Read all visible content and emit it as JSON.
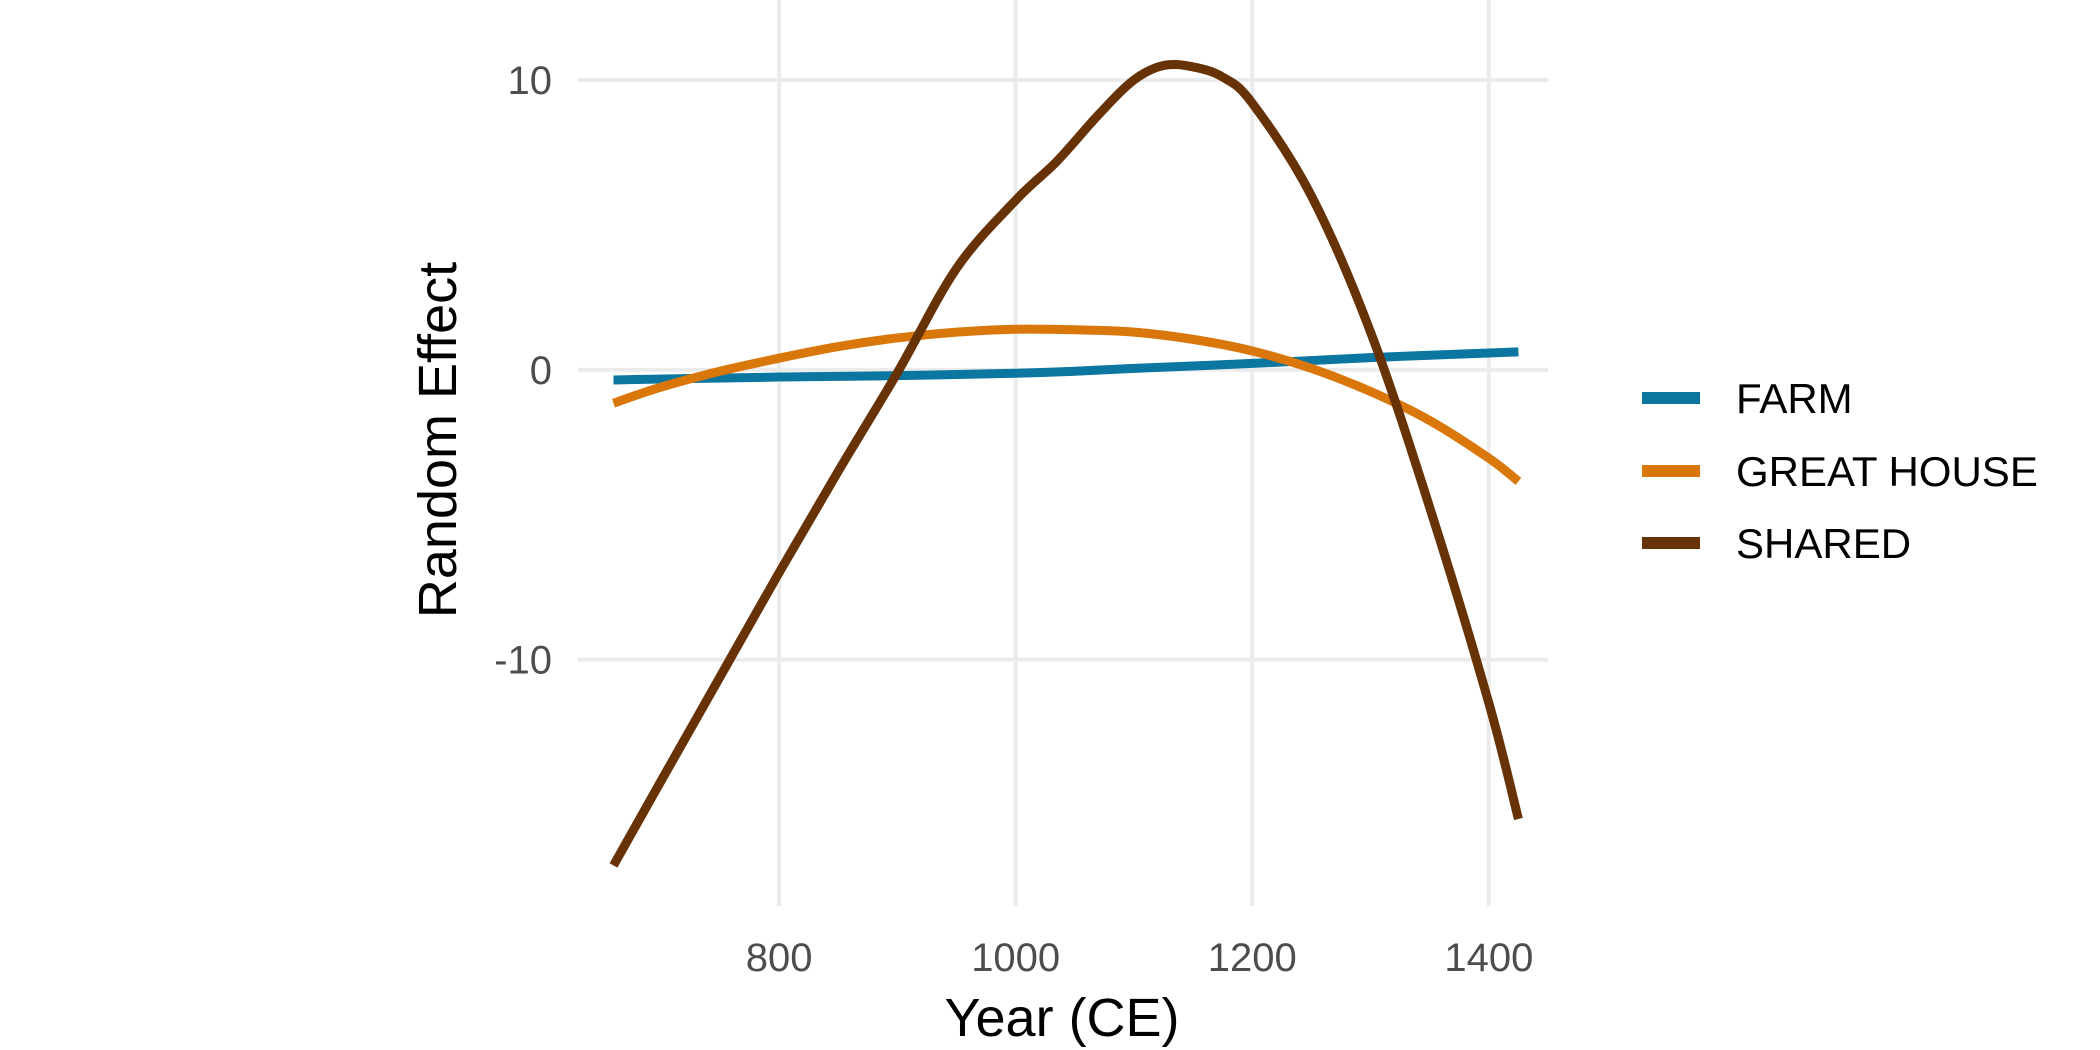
{
  "chart_data": {
    "type": "line",
    "title": "",
    "xlabel": "Year (CE)",
    "ylabel": "Random Effect",
    "xlim": [
      630,
      1450
    ],
    "ylim": [
      -18.5,
      12
    ],
    "x_ticks": [
      800,
      1000,
      1200,
      1400
    ],
    "x_tick_labels": [
      "800",
      "1000",
      "1200",
      "1400"
    ],
    "y_ticks": [
      -10,
      0,
      10
    ],
    "y_tick_labels": [
      "-10",
      "0",
      "10"
    ],
    "grid": true,
    "legend_position": "right",
    "series": [
      {
        "name": "FARM",
        "color": "#0b76a0",
        "x": [
          660,
          800,
          900,
          1000,
          1050,
          1100,
          1200,
          1300,
          1425
        ],
        "y": [
          -0.35,
          -0.25,
          -0.2,
          -0.12,
          -0.05,
          0.05,
          0.22,
          0.42,
          0.62
        ]
      },
      {
        "name": "GREAT HOUSE",
        "color": "#d9770a",
        "x": [
          660,
          700,
          750,
          800,
          850,
          900,
          950,
          1000,
          1050,
          1100,
          1150,
          1200,
          1250,
          1300,
          1350,
          1400,
          1425
        ],
        "y": [
          -1.15,
          -0.6,
          -0.05,
          0.4,
          0.8,
          1.1,
          1.3,
          1.4,
          1.38,
          1.3,
          1.05,
          0.65,
          0.05,
          -0.75,
          -1.75,
          -3.05,
          -3.85
        ]
      },
      {
        "name": "SHARED",
        "color": "#673206",
        "x": [
          660,
          700,
          750,
          800,
          850,
          900,
          950,
          1000,
          1035,
          1070,
          1100,
          1125,
          1150,
          1175,
          1200,
          1250,
          1300,
          1350,
          1400,
          1425
        ],
        "y": [
          -17.1,
          -14.2,
          -10.6,
          -7.0,
          -3.5,
          -0.1,
          3.5,
          5.85,
          7.2,
          8.8,
          10.0,
          10.5,
          10.45,
          10.1,
          9.2,
          6.0,
          1.3,
          -4.75,
          -11.5,
          -15.5
        ]
      }
    ]
  }
}
